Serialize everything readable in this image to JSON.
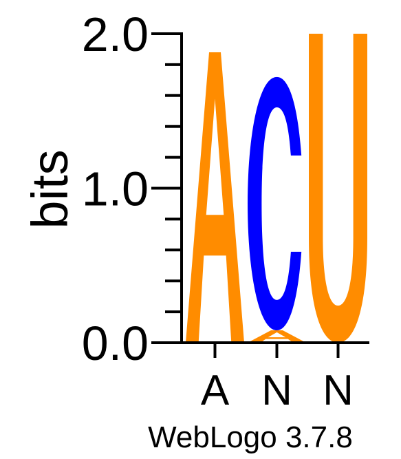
{
  "chart_data": {
    "type": "sequence-logo",
    "ylabel": "bits",
    "ylim": [
      0,
      2.0
    ],
    "y_ticks_major": [
      "0.0",
      "1.0",
      "2.0"
    ],
    "y_tick_minor_step": 0.2,
    "positions": [
      "A",
      "N",
      "N"
    ],
    "stacks": [
      {
        "position": "A",
        "letters": [
          {
            "letter": "A",
            "bits": 1.88,
            "color": "#ff8c00"
          }
        ]
      },
      {
        "position": "N",
        "letters": [
          {
            "letter": "A",
            "bits": 0.08,
            "color": "#ff8c00"
          },
          {
            "letter": "C",
            "bits": 1.64,
            "color": "#0000ff"
          }
        ]
      },
      {
        "position": "N",
        "letters": [
          {
            "letter": "U",
            "bits": 2.0,
            "color": "#ff8c00"
          }
        ]
      }
    ],
    "footer": "WebLogo 3.7.8"
  }
}
